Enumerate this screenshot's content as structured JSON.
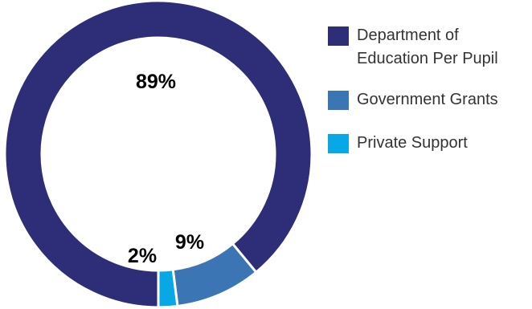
{
  "chart_data": {
    "type": "pie",
    "style": "donut",
    "title": "",
    "categories": [
      "Department of Education Per Pupil",
      "Government Grants",
      "Private Support"
    ],
    "values": [
      89,
      9,
      2
    ],
    "data_labels": [
      "89%",
      "9%",
      "2%"
    ],
    "colors": [
      "#2e2d77",
      "#3b75b4",
      "#08a8e6"
    ],
    "legend_placement": "right",
    "start": "bottom, clockwise"
  },
  "legend": {
    "items": [
      {
        "label": "Department of Education Per Pupil",
        "color": "#2e2d77"
      },
      {
        "label": "Government Grants",
        "color": "#3b75b4"
      },
      {
        "label": "Private Support",
        "color": "#08a8e6"
      }
    ]
  }
}
